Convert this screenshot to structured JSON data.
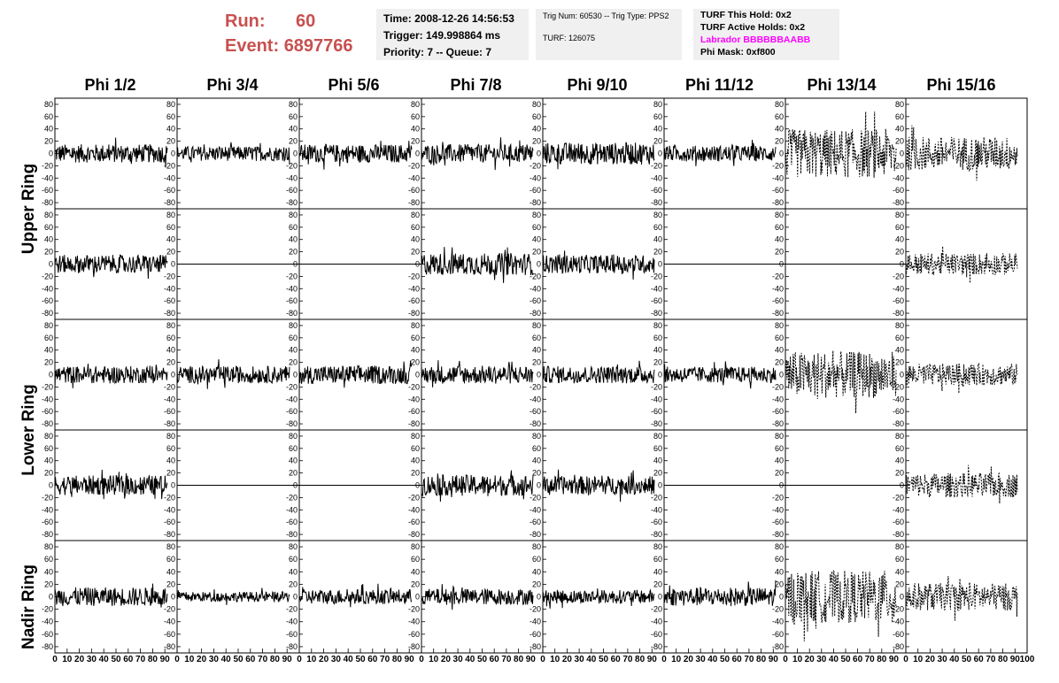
{
  "header": {
    "run_label": "Run:",
    "run_value": "60",
    "event_label": "Event:",
    "event_value": "6897766",
    "time": "Time: 2008-12-26 14:56:53",
    "trigger": "Trigger: 149.998864 ms",
    "priority": "Priority: 7 -- Queue: 7",
    "trig_num": "Trig Num: 60530 -- Trig Type: PPS2",
    "turf": "TURF: 126075",
    "turf_this_hold": "TURF This Hold: 0x2",
    "turf_active_holds": "TURF Active Holds: 0x2",
    "labrador": "Labrador BBBBBBAABB",
    "phi_mask": "Phi Mask: 0xf800"
  },
  "columns": [
    "Phi 1/2",
    "Phi 3/4",
    "Phi 5/6",
    "Phi 7/8",
    "Phi 9/10",
    "Phi 11/12",
    "Phi 13/14",
    "Phi 15/16"
  ],
  "rings": [
    "Upper Ring",
    "Lower Ring",
    "Nadir Ring"
  ],
  "chart_data": {
    "type": "line",
    "description_rows": 5,
    "ylim": [
      -90,
      90
    ],
    "xlim": [
      0,
      100
    ],
    "y_ticks": [
      -80,
      -60,
      -40,
      -20,
      0,
      20,
      40,
      60,
      80
    ],
    "x_ticks": [
      0,
      10,
      20,
      30,
      40,
      50,
      60,
      70,
      80,
      90,
      100
    ],
    "x_tick_labels": [
      "0",
      "10",
      "20",
      "30",
      "40",
      "50",
      "60",
      "70",
      "80",
      "90",
      "100"
    ],
    "grid": false,
    "panels": [
      {
        "row": 0,
        "col": 0,
        "amp": 15,
        "mode": "solid",
        "start": 0,
        "end": 92
      },
      {
        "row": 0,
        "col": 1,
        "amp": 12,
        "mode": "solid",
        "start": 0,
        "end": 92
      },
      {
        "row": 0,
        "col": 2,
        "amp": 15,
        "mode": "solid",
        "start": 0,
        "end": 92
      },
      {
        "row": 0,
        "col": 3,
        "amp": 15,
        "mode": "solid",
        "start": 0,
        "end": 92
      },
      {
        "row": 0,
        "col": 4,
        "amp": 18,
        "mode": "solid",
        "start": 0,
        "end": 92
      },
      {
        "row": 0,
        "col": 5,
        "amp": 13,
        "mode": "solid",
        "start": 0,
        "end": 92
      },
      {
        "row": 0,
        "col": 6,
        "amp": 40,
        "mode": "dashed",
        "start": 0,
        "end": 92
      },
      {
        "row": 0,
        "col": 7,
        "amp": 28,
        "mode": "dashed",
        "start": 0,
        "end": 92
      },
      {
        "row": 1,
        "col": 0,
        "amp": 15,
        "mode": "solid",
        "start": 0,
        "end": 92
      },
      {
        "row": 1,
        "col": 1,
        "amp": 0,
        "mode": "flat",
        "start": 0,
        "end": 92
      },
      {
        "row": 1,
        "col": 2,
        "amp": 0,
        "mode": "flat",
        "start": 0,
        "end": 92
      },
      {
        "row": 1,
        "col": 3,
        "amp": 18,
        "mode": "solid",
        "start": 0,
        "end": 92
      },
      {
        "row": 1,
        "col": 4,
        "amp": 15,
        "mode": "solid",
        "start": 0,
        "end": 92
      },
      {
        "row": 1,
        "col": 5,
        "amp": 0,
        "mode": "flat",
        "start": 0,
        "end": 92
      },
      {
        "row": 1,
        "col": 6,
        "amp": 0,
        "mode": "flat",
        "start": 0,
        "end": 92
      },
      {
        "row": 1,
        "col": 7,
        "amp": 18,
        "mode": "dashed",
        "start": 0,
        "end": 92
      },
      {
        "row": 2,
        "col": 0,
        "amp": 14,
        "mode": "solid",
        "start": 0,
        "end": 92
      },
      {
        "row": 2,
        "col": 1,
        "amp": 14,
        "mode": "solid",
        "start": 0,
        "end": 92
      },
      {
        "row": 2,
        "col": 2,
        "amp": 15,
        "mode": "solid",
        "start": 0,
        "end": 92
      },
      {
        "row": 2,
        "col": 3,
        "amp": 15,
        "mode": "solid",
        "start": 0,
        "end": 92
      },
      {
        "row": 2,
        "col": 4,
        "amp": 14,
        "mode": "solid",
        "start": 0,
        "end": 92
      },
      {
        "row": 2,
        "col": 5,
        "amp": 13,
        "mode": "solid",
        "start": 0,
        "end": 92
      },
      {
        "row": 2,
        "col": 6,
        "amp": 38,
        "mode": "dashed",
        "start": 0,
        "end": 92
      },
      {
        "row": 2,
        "col": 7,
        "amp": 18,
        "mode": "dashed",
        "start": 0,
        "end": 92
      },
      {
        "row": 3,
        "col": 0,
        "amp": 16,
        "mode": "solid",
        "start": 0,
        "end": 92
      },
      {
        "row": 3,
        "col": 1,
        "amp": 0,
        "mode": "flat",
        "start": 0,
        "end": 92
      },
      {
        "row": 3,
        "col": 2,
        "amp": 0,
        "mode": "flat",
        "start": 0,
        "end": 92
      },
      {
        "row": 3,
        "col": 3,
        "amp": 17,
        "mode": "solid",
        "start": 0,
        "end": 92
      },
      {
        "row": 3,
        "col": 4,
        "amp": 15,
        "mode": "solid",
        "start": 0,
        "end": 92
      },
      {
        "row": 3,
        "col": 5,
        "amp": 0,
        "mode": "flat",
        "start": 0,
        "end": 92
      },
      {
        "row": 3,
        "col": 6,
        "amp": 0,
        "mode": "flat",
        "start": 0,
        "end": 92
      },
      {
        "row": 3,
        "col": 7,
        "amp": 20,
        "mode": "dashed",
        "start": 0,
        "end": 92
      },
      {
        "row": 4,
        "col": 0,
        "amp": 15,
        "mode": "solid",
        "start": 0,
        "end": 92
      },
      {
        "row": 4,
        "col": 1,
        "amp": 8,
        "mode": "solid",
        "start": 0,
        "end": 92
      },
      {
        "row": 4,
        "col": 2,
        "amp": 12,
        "mode": "solid",
        "start": 0,
        "end": 92
      },
      {
        "row": 4,
        "col": 3,
        "amp": 13,
        "mode": "solid",
        "start": 0,
        "end": 92
      },
      {
        "row": 4,
        "col": 4,
        "amp": 11,
        "mode": "solid",
        "start": 0,
        "end": 92
      },
      {
        "row": 4,
        "col": 5,
        "amp": 15,
        "mode": "solid",
        "start": 0,
        "end": 92
      },
      {
        "row": 4,
        "col": 6,
        "amp": 42,
        "mode": "dashed",
        "start": 0,
        "end": 92
      },
      {
        "row": 4,
        "col": 7,
        "amp": 22,
        "mode": "dashed",
        "start": 0,
        "end": 92
      }
    ]
  },
  "colors": {
    "run": "#c85050",
    "labrador": "#ff00ff",
    "box": "#f0f0f0",
    "trace": "#000000"
  }
}
